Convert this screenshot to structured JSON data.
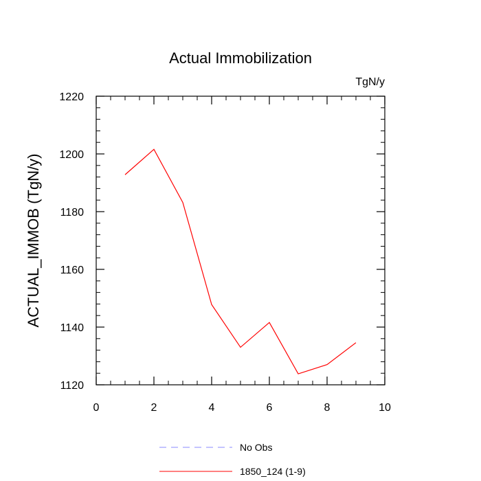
{
  "chart_data": {
    "type": "line",
    "title": "Actual Immobilization",
    "units_label": "TgN/y",
    "xlabel": "",
    "ylabel": "ACTUAL_IMMOB  (TgN/y)",
    "xlim": [
      0,
      10
    ],
    "ylim": [
      1120,
      1220
    ],
    "xticks": [
      0,
      2,
      4,
      6,
      8,
      10
    ],
    "yticks": [
      1120,
      1140,
      1160,
      1180,
      1200,
      1220
    ],
    "x_minor_step": 0.5,
    "y_minor_step": 4,
    "grid": false,
    "legend_placement": "bottom-center",
    "series": [
      {
        "name": "1850_124 (1-9)",
        "color": "#ff0000",
        "dash": "solid",
        "x": [
          1,
          2,
          3,
          4,
          5,
          6,
          7,
          8,
          9
        ],
        "y": [
          1192.8,
          1201.6,
          1183.2,
          1147.8,
          1133.0,
          1141.6,
          1123.8,
          1127.0,
          1134.6
        ]
      }
    ],
    "legend": [
      {
        "label": "No Obs",
        "color": "#8888ff",
        "dash": "dashed"
      },
      {
        "label": "1850_124 (1-9)",
        "color": "#ff0000",
        "dash": "solid"
      }
    ]
  }
}
